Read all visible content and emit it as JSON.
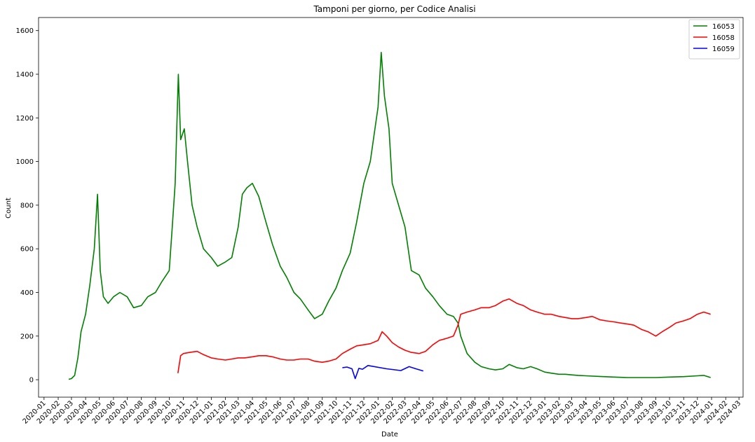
{
  "chart_data": {
    "type": "line",
    "title": "Tamponi per giorno, per Codice Analisi",
    "xlabel": "Date",
    "ylabel": "Count",
    "ylim": [
      -80,
      1660
    ],
    "xlim": [
      "2019-12-20",
      "2024-03-10"
    ],
    "yticks": [
      0,
      200,
      400,
      600,
      800,
      1000,
      1200,
      1400,
      1600
    ],
    "xticks": [
      "2020-01",
      "2020-02",
      "2020-03",
      "2020-04",
      "2020-05",
      "2020-06",
      "2020-07",
      "2020-08",
      "2020-09",
      "2020-10",
      "2020-11",
      "2020-12",
      "2021-01",
      "2021-02",
      "2021-03",
      "2021-04",
      "2021-05",
      "2021-06",
      "2021-07",
      "2021-08",
      "2021-09",
      "2021-10",
      "2021-11",
      "2021-12",
      "2022-01",
      "2022-02",
      "2022-03",
      "2022-04",
      "2022-05",
      "2022-06",
      "2022-07",
      "2022-08",
      "2022-09",
      "2022-10",
      "2022-11",
      "2022-12",
      "2023-01",
      "2023-02",
      "2023-03",
      "2023-04",
      "2023-05",
      "2023-06",
      "2023-07",
      "2023-08",
      "2023-09",
      "2023-10",
      "2023-11",
      "2023-12",
      "2024-01",
      "2024-02",
      "2024-03"
    ],
    "legend_position": "top-right",
    "grid": false,
    "series": [
      {
        "name": "16053",
        "color": "#008000",
        "x": [
          "2020-02-24",
          "2020-03-01",
          "2020-03-08",
          "2020-03-15",
          "2020-03-22",
          "2020-04-01",
          "2020-04-10",
          "2020-04-20",
          "2020-04-27",
          "2020-05-03",
          "2020-05-10",
          "2020-05-20",
          "2020-06-01",
          "2020-06-15",
          "2020-07-01",
          "2020-07-15",
          "2020-08-01",
          "2020-08-15",
          "2020-09-01",
          "2020-09-15",
          "2020-10-01",
          "2020-10-07",
          "2020-10-14",
          "2020-10-21",
          "2020-10-26",
          "2020-11-03",
          "2020-11-10",
          "2020-11-20",
          "2020-12-01",
          "2020-12-15",
          "2021-01-01",
          "2021-01-15",
          "2021-02-01",
          "2021-02-15",
          "2021-03-01",
          "2021-03-10",
          "2021-03-20",
          "2021-04-01",
          "2021-04-15",
          "2021-05-01",
          "2021-05-15",
          "2021-06-01",
          "2021-06-15",
          "2021-07-01",
          "2021-07-15",
          "2021-08-01",
          "2021-08-15",
          "2021-09-01",
          "2021-09-15",
          "2021-10-01",
          "2021-10-15",
          "2021-11-01",
          "2021-11-15",
          "2021-12-01",
          "2021-12-15",
          "2022-01-01",
          "2022-01-08",
          "2022-01-15",
          "2022-01-25",
          "2022-02-01",
          "2022-02-15",
          "2022-03-01",
          "2022-03-15",
          "2022-04-01",
          "2022-04-15",
          "2022-05-01",
          "2022-05-15",
          "2022-06-01",
          "2022-06-15",
          "2022-06-25",
          "2022-07-01",
          "2022-07-15",
          "2022-08-01",
          "2022-08-15",
          "2022-09-01",
          "2022-09-15",
          "2022-10-01",
          "2022-10-15",
          "2022-11-01",
          "2022-11-15",
          "2022-12-01",
          "2022-12-15",
          "2023-01-01",
          "2023-01-15",
          "2023-02-01",
          "2023-02-15",
          "2023-03-01",
          "2023-03-15",
          "2023-04-01",
          "2023-05-01",
          "2023-06-01",
          "2023-07-01",
          "2023-08-01",
          "2023-09-01",
          "2023-10-01",
          "2023-11-01",
          "2023-12-01",
          "2023-12-15",
          "2023-12-30"
        ],
        "y": [
          2,
          5,
          20,
          100,
          220,
          300,
          430,
          600,
          850,
          500,
          380,
          350,
          380,
          400,
          380,
          330,
          340,
          380,
          400,
          450,
          500,
          680,
          900,
          1400,
          1100,
          1150,
          1000,
          800,
          700,
          600,
          560,
          520,
          540,
          560,
          700,
          850,
          880,
          900,
          840,
          720,
          620,
          520,
          470,
          400,
          370,
          320,
          280,
          300,
          360,
          420,
          500,
          580,
          720,
          900,
          1000,
          1250,
          1500,
          1300,
          1150,
          900,
          800,
          700,
          500,
          480,
          420,
          380,
          340,
          300,
          290,
          260,
          200,
          120,
          80,
          60,
          50,
          45,
          50,
          70,
          55,
          50,
          60,
          50,
          35,
          30,
          25,
          25,
          22,
          20,
          18,
          15,
          12,
          10,
          10,
          10,
          12,
          14,
          18,
          20,
          10
        ]
      },
      {
        "name": "16058",
        "color": "#ff0000",
        "x": [
          "2020-10-20",
          "2020-10-26",
          "2020-11-01",
          "2020-11-15",
          "2020-12-01",
          "2020-12-15",
          "2021-01-01",
          "2021-01-15",
          "2021-02-01",
          "2021-02-15",
          "2021-03-01",
          "2021-03-15",
          "2021-04-01",
          "2021-04-15",
          "2021-05-01",
          "2021-05-15",
          "2021-06-01",
          "2021-06-15",
          "2021-07-01",
          "2021-07-15",
          "2021-08-01",
          "2021-08-15",
          "2021-09-01",
          "2021-09-15",
          "2021-10-01",
          "2021-10-15",
          "2021-11-01",
          "2021-11-15",
          "2021-12-01",
          "2021-12-15",
          "2022-01-01",
          "2022-01-10",
          "2022-01-20",
          "2022-02-01",
          "2022-02-15",
          "2022-03-01",
          "2022-03-15",
          "2022-04-01",
          "2022-04-15",
          "2022-05-01",
          "2022-05-15",
          "2022-06-01",
          "2022-06-15",
          "2022-06-25",
          "2022-07-01",
          "2022-07-15",
          "2022-08-01",
          "2022-08-15",
          "2022-09-01",
          "2022-09-15",
          "2022-10-01",
          "2022-10-15",
          "2022-11-01",
          "2022-11-15",
          "2022-12-01",
          "2022-12-15",
          "2023-01-01",
          "2023-01-15",
          "2023-02-01",
          "2023-02-15",
          "2023-03-01",
          "2023-03-15",
          "2023-04-01",
          "2023-04-15",
          "2023-05-01",
          "2023-05-15",
          "2023-06-01",
          "2023-06-15",
          "2023-07-01",
          "2023-07-15",
          "2023-08-01",
          "2023-08-15",
          "2023-09-01",
          "2023-09-15",
          "2023-10-01",
          "2023-10-15",
          "2023-11-01",
          "2023-11-15",
          "2023-12-01",
          "2023-12-15",
          "2023-12-30"
        ],
        "y": [
          30,
          110,
          120,
          125,
          130,
          115,
          100,
          95,
          90,
          95,
          100,
          100,
          105,
          110,
          110,
          105,
          95,
          90,
          90,
          95,
          95,
          85,
          80,
          85,
          95,
          120,
          140,
          155,
          160,
          165,
          180,
          220,
          200,
          170,
          150,
          135,
          125,
          120,
          130,
          160,
          180,
          190,
          200,
          250,
          300,
          310,
          320,
          330,
          330,
          340,
          360,
          370,
          350,
          340,
          320,
          310,
          300,
          300,
          290,
          285,
          280,
          280,
          285,
          290,
          275,
          270,
          265,
          260,
          255,
          250,
          230,
          220,
          200,
          220,
          240,
          260,
          270,
          280,
          300,
          310,
          300
        ]
      },
      {
        "name": "16059",
        "color": "#0000ff",
        "x": [
          "2021-10-15",
          "2021-10-25",
          "2021-11-05",
          "2021-11-12",
          "2021-11-20",
          "2021-11-28",
          "2021-12-10",
          "2022-01-20",
          "2022-02-20",
          "2022-03-10",
          "2022-03-25",
          "2022-04-10"
        ],
        "y": [
          55,
          58,
          50,
          5,
          52,
          48,
          65,
          50,
          42,
          60,
          50,
          40
        ]
      }
    ]
  }
}
